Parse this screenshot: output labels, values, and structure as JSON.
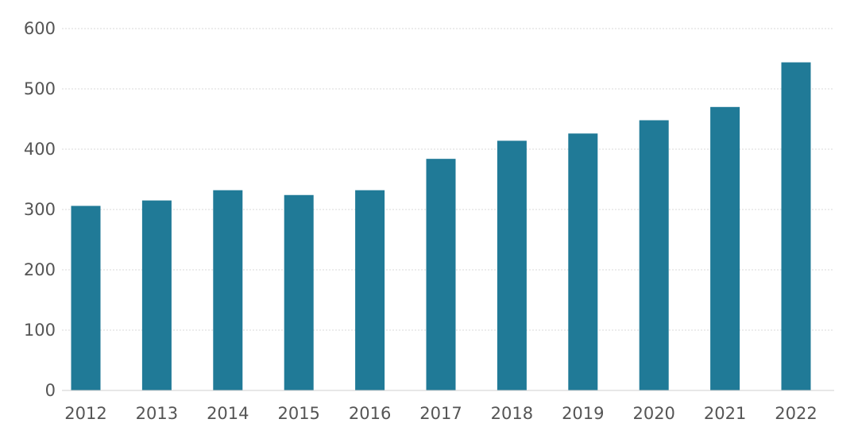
{
  "chart_data": {
    "type": "bar",
    "categories": [
      "2012",
      "2013",
      "2014",
      "2015",
      "2016",
      "2017",
      "2018",
      "2019",
      "2020",
      "2021",
      "2022"
    ],
    "values": [
      306,
      315,
      332,
      324,
      332,
      384,
      414,
      426,
      448,
      470,
      544
    ],
    "title": "",
    "xlabel": "",
    "ylabel": "",
    "ylim": [
      0,
      600
    ],
    "yticks": [
      0,
      100,
      200,
      300,
      400,
      500,
      600
    ],
    "grid": true,
    "legend": "none",
    "bar_color": "#207a97"
  }
}
